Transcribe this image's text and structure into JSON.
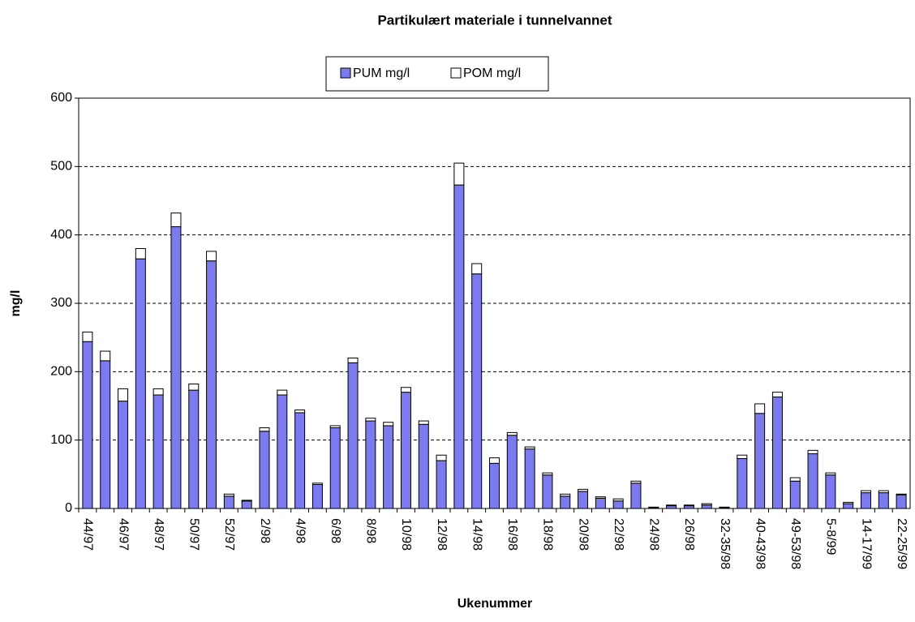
{
  "chart_data": {
    "type": "stacked-bar",
    "title": "Partikulært materiale i tunnelvannet",
    "x_label": "Ukenummer",
    "y_label": "mg/l",
    "categories": [
      "44/97",
      null,
      "46/97",
      null,
      "48/97",
      null,
      "50/97",
      null,
      "52/97",
      null,
      "2/98",
      null,
      "4/98",
      null,
      "6/98",
      null,
      "8/98",
      null,
      "10/98",
      null,
      "12/98",
      null,
      "14/98",
      null,
      "16/98",
      null,
      "18/98",
      null,
      "20/98",
      null,
      "22/98",
      null,
      "24/98",
      null,
      "26/98",
      null,
      "32-35/98",
      null,
      "40-43/98",
      null,
      "49-53/98",
      null,
      "5-8/99",
      null,
      "14-17/99",
      null,
      "22-25/99"
    ],
    "series": [
      {
        "name": "PUM mg/l",
        "color": "#7b7bef",
        "values": [
          244,
          216,
          157,
          365,
          166,
          412,
          173,
          362,
          18,
          11,
          113,
          166,
          140,
          35,
          118,
          213,
          128,
          121,
          170,
          123,
          70,
          473,
          343,
          66,
          107,
          87,
          49,
          18,
          25,
          15,
          11,
          37,
          1,
          4,
          4,
          5,
          1,
          73,
          139,
          163,
          40,
          80,
          49,
          7,
          23,
          23,
          20
        ]
      },
      {
        "name": "POM mg/l",
        "color": "#ffffff",
        "values": [
          14,
          14,
          18,
          15,
          9,
          20,
          9,
          14,
          3,
          1,
          5,
          7,
          4,
          2,
          3,
          7,
          4,
          5,
          7,
          5,
          8,
          32,
          15,
          8,
          4,
          3,
          3,
          3,
          3,
          2,
          3,
          3,
          1,
          1,
          1,
          2,
          1,
          5,
          14,
          7,
          5,
          5,
          3,
          2,
          3,
          3,
          1
        ]
      }
    ],
    "ylim": [
      0,
      600
    ],
    "yticks": [
      0,
      100,
      200,
      300,
      400,
      500,
      600
    ],
    "grid": true
  }
}
